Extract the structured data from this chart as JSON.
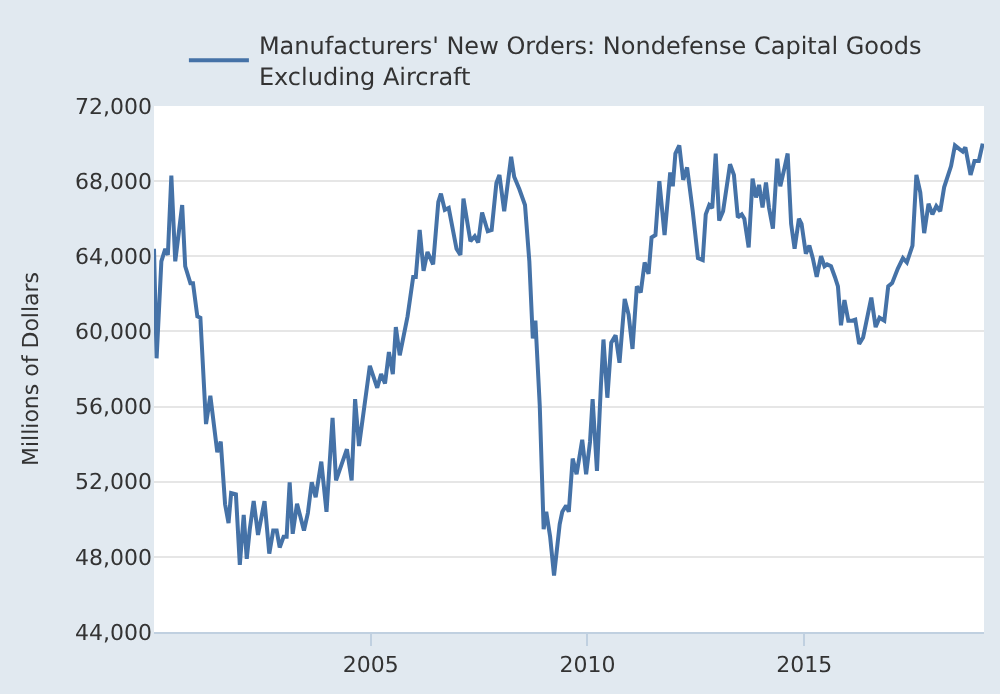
{
  "chart_data": {
    "type": "line",
    "ylabel": "Millions of Dollars",
    "legend": "top left",
    "grid": "y",
    "marker": "none",
    "line_style": "solid",
    "xlim": [
      2000,
      2019.15
    ],
    "xticks": [
      2005,
      2010,
      2015
    ],
    "ylim": [
      44000,
      72000
    ],
    "yticks": [
      {
        "value": 44000,
        "label": "44,000"
      },
      {
        "value": 48000,
        "label": "48,000"
      },
      {
        "value": 52000,
        "label": "52,000"
      },
      {
        "value": 56000,
        "label": "56,000"
      },
      {
        "value": 60000,
        "label": "60,000"
      },
      {
        "value": 64000,
        "label": "64,000"
      },
      {
        "value": 68000,
        "label": "68,000"
      },
      {
        "value": 72000,
        "label": "72,000"
      }
    ],
    "series": [
      {
        "name": "Manufacturers' New Orders: Nondefense Capital Goods Excluding Aircraft",
        "color": "#4572a7",
        "x": [
          2000.0,
          2000.06,
          2000.17,
          2000.26,
          2000.32,
          2000.4,
          2000.49,
          2000.65,
          2000.72,
          2000.84,
          2000.9,
          2001.0,
          2001.07,
          2001.2,
          2001.3,
          2001.46,
          2001.54,
          2001.64,
          2001.72,
          2001.78,
          2001.89,
          2001.98,
          2002.07,
          2002.14,
          2002.21,
          2002.3,
          2002.4,
          2002.55,
          2002.66,
          2002.75,
          2002.83,
          2002.9,
          2002.99,
          2003.06,
          2003.13,
          2003.2,
          2003.3,
          2003.46,
          2003.55,
          2003.64,
          2003.73,
          2003.86,
          2003.98,
          2004.12,
          2004.2,
          2004.35,
          2004.45,
          2004.56,
          2004.64,
          2004.73,
          2004.98,
          2005.15,
          2005.24,
          2005.33,
          2005.42,
          2005.51,
          2005.58,
          2005.67,
          2005.85,
          2005.98,
          2006.04,
          2006.13,
          2006.22,
          2006.31,
          2006.44,
          2006.56,
          2006.62,
          2006.71,
          2006.8,
          2006.98,
          2007.07,
          2007.14,
          2007.3,
          2007.4,
          2007.48,
          2007.57,
          2007.7,
          2007.79,
          2007.9,
          2007.97,
          2008.08,
          2008.24,
          2008.31,
          2008.43,
          2008.56,
          2008.66,
          2008.74,
          2008.8,
          2008.9,
          2008.99,
          2009.05,
          2009.14,
          2009.23,
          2009.36,
          2009.42,
          2009.51,
          2009.57,
          2009.66,
          2009.75,
          2009.88,
          2009.97,
          2010.06,
          2010.12,
          2010.22,
          2010.31,
          2010.37,
          2010.46,
          2010.55,
          2010.65,
          2010.74,
          2010.86,
          2010.95,
          2011.04,
          2011.14,
          2011.23,
          2011.32,
          2011.41,
          2011.48,
          2011.57,
          2011.66,
          2011.78,
          2011.91,
          2011.97,
          2012.03,
          2012.12,
          2012.21,
          2012.3,
          2012.43,
          2012.55,
          2012.66,
          2012.73,
          2012.81,
          2012.88,
          2012.96,
          2013.04,
          2013.13,
          2013.29,
          2013.38,
          2013.47,
          2013.56,
          2013.62,
          2013.72,
          2013.81,
          2013.89,
          2013.96,
          2014.04,
          2014.12,
          2014.19,
          2014.28,
          2014.38,
          2014.45,
          2014.55,
          2014.62,
          2014.7,
          2014.78,
          2014.88,
          2014.94,
          2015.04,
          2015.12,
          2015.2,
          2015.29,
          2015.39,
          2015.47,
          2015.53,
          2015.62,
          2015.71,
          2015.78,
          2015.85,
          2015.93,
          2016.02,
          2016.11,
          2016.18,
          2016.27,
          2016.36,
          2016.55,
          2016.65,
          2016.74,
          2016.85,
          2016.94,
          2017.03,
          2017.16,
          2017.28,
          2017.37,
          2017.5,
          2017.59,
          2017.68,
          2017.77,
          2017.87,
          2017.96,
          2018.05,
          2018.14,
          2018.23,
          2018.39,
          2018.48,
          2018.57,
          2018.66,
          2018.72,
          2018.84,
          2018.93,
          2019.03,
          2019.12
        ],
        "values": [
          64400,
          58570,
          63730,
          64400,
          64070,
          68300,
          63730,
          66730,
          63470,
          62570,
          62570,
          60800,
          60730,
          55070,
          56570,
          53570,
          54130,
          50800,
          49800,
          51400,
          51330,
          47570,
          50230,
          47900,
          49470,
          50970,
          49170,
          50970,
          48170,
          49400,
          49400,
          48500,
          49070,
          49070,
          51970,
          49230,
          50830,
          49400,
          50330,
          51970,
          51170,
          53070,
          50400,
          55400,
          52070,
          53070,
          53730,
          52070,
          56400,
          53900,
          58170,
          57000,
          57730,
          57230,
          58900,
          57730,
          60230,
          58730,
          60800,
          62900,
          62900,
          65400,
          63230,
          64230,
          63570,
          66900,
          67330,
          66470,
          66570,
          64400,
          64070,
          67070,
          64800,
          65070,
          64730,
          66330,
          65330,
          65400,
          67900,
          68330,
          66400,
          69300,
          68230,
          67570,
          66730,
          63730,
          59630,
          60570,
          56070,
          49470,
          50400,
          49070,
          47000,
          49730,
          50400,
          50730,
          50400,
          53230,
          52400,
          54230,
          52400,
          54130,
          56400,
          52570,
          57070,
          59570,
          56470,
          59400,
          59800,
          58330,
          61730,
          60900,
          59070,
          62400,
          62070,
          63670,
          63070,
          65000,
          65130,
          68000,
          65130,
          68470,
          67730,
          69470,
          69900,
          68070,
          68730,
          66400,
          63900,
          63800,
          66230,
          66730,
          66570,
          69470,
          65900,
          66400,
          68900,
          68330,
          66070,
          66230,
          66000,
          64470,
          68130,
          67130,
          67800,
          66600,
          67930,
          66570,
          65470,
          69200,
          67730,
          68730,
          69470,
          65730,
          64400,
          66000,
          65730,
          64130,
          64570,
          63900,
          62900,
          64000,
          63470,
          63570,
          63470,
          62900,
          62400,
          60330,
          61670,
          60570,
          60570,
          60630,
          59330,
          59670,
          61800,
          60230,
          60730,
          60570,
          62400,
          62570,
          63330,
          63900,
          63670,
          64570,
          68330,
          67400,
          65230,
          66800,
          66230,
          66670,
          66400,
          67670,
          68800,
          69900,
          69730,
          69570,
          69800,
          68330,
          69070,
          69070,
          70000
        ]
      }
    ]
  }
}
